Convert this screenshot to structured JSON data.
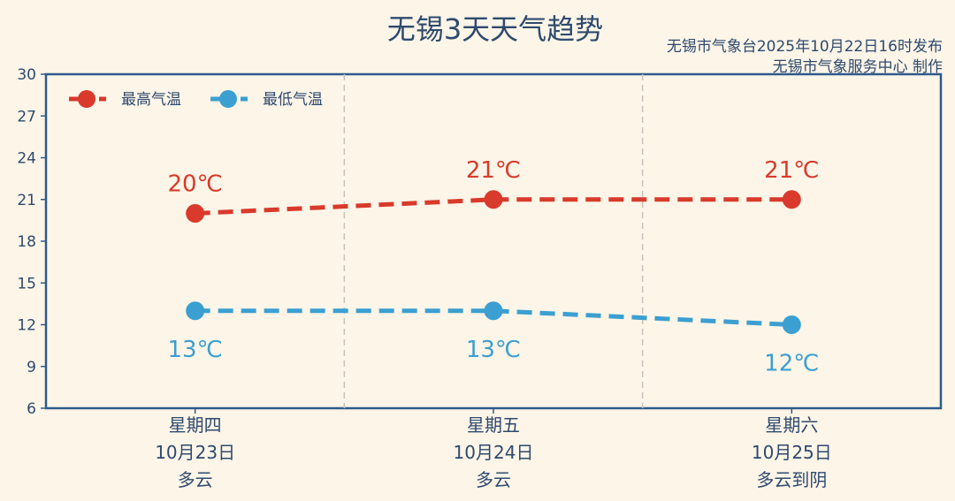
{
  "title": "无锡3天天气趋势",
  "publisher_line1": "无锡市气象台2025年10月22日16时发布",
  "publisher_line2": "无锡市气象服务中心  制作",
  "chart_data": {
    "type": "line",
    "title": "无锡3天天气趋势",
    "categories": [
      {
        "weekday": "星期四",
        "date": "10月23日",
        "weather": "多云"
      },
      {
        "weekday": "星期五",
        "date": "10月24日",
        "weather": "多云"
      },
      {
        "weekday": "星期六",
        "date": "10月25日",
        "weather": "多云到阴"
      }
    ],
    "series": [
      {
        "name": "最高气温",
        "color": "#d93a2b",
        "values": [
          20,
          21,
          21
        ],
        "labels": [
          "20℃",
          "21℃",
          "21℃"
        ]
      },
      {
        "name": "最低气温",
        "color": "#3b9fd1",
        "values": [
          13,
          13,
          12
        ],
        "labels": [
          "13℃",
          "13℃",
          "12℃"
        ]
      }
    ],
    "ylim": [
      6,
      30
    ],
    "yticks": [
      6,
      9,
      12,
      15,
      18,
      21,
      24,
      27,
      30
    ],
    "legend": "top-left",
    "grid": "vertical dashed separators"
  }
}
